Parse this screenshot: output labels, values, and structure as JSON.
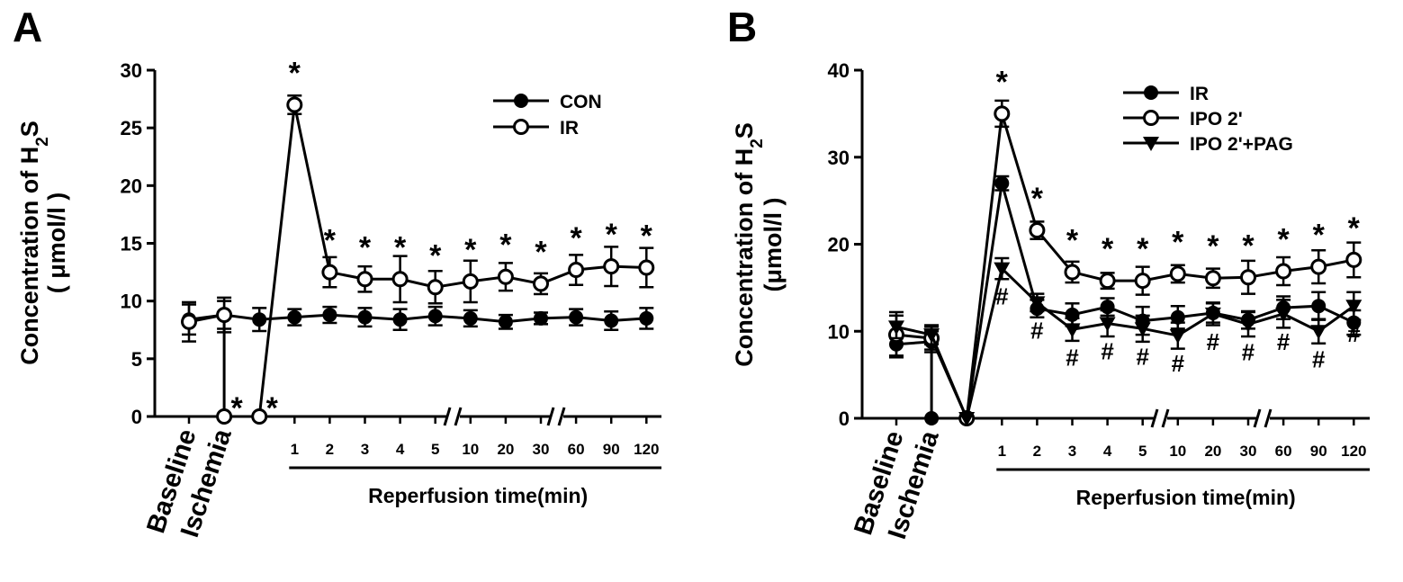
{
  "chart_data": [
    {
      "panel": "A",
      "type": "line",
      "ylabel_line1": "Concentration of H",
      "ylabel_sub": "2",
      "ylabel_tail": "S",
      "ylabel_line2": "( μmol/l )",
      "xlabel": "Reperfusion time(min)",
      "phase_labels": [
        "Baseline",
        "Ischemia"
      ],
      "x_ticks": [
        "1",
        "2",
        "3",
        "4",
        "5",
        "10",
        "20",
        "30",
        "60",
        "90",
        "120"
      ],
      "ylim": [
        0,
        30
      ],
      "y_ticks": [
        0,
        5,
        10,
        15,
        20,
        25,
        30
      ],
      "legend_position": "top-right",
      "series": [
        {
          "name": "CON",
          "marker": "filled-circle",
          "values": [
            8.4,
            8.8,
            8.4,
            8.6,
            8.8,
            8.6,
            8.4,
            8.7,
            8.5,
            8.2,
            8.5,
            8.6,
            8.3,
            8.5
          ],
          "errors": [
            1.3,
            1.2,
            1.0,
            0.7,
            0.7,
            0.8,
            0.9,
            0.8,
            0.7,
            0.6,
            0.5,
            0.7,
            0.8,
            0.9
          ]
        },
        {
          "name": "IR",
          "marker": "open-circle",
          "values": [
            8.2,
            8.8,
            0,
            0,
            27.0,
            12.5,
            11.9,
            11.9,
            11.2,
            11.7,
            12.1,
            11.5,
            12.7,
            13.0,
            12.9
          ],
          "errors": [
            1.7,
            1.5,
            0,
            0,
            0.8,
            1.3,
            1.1,
            2.0,
            1.4,
            1.8,
            1.2,
            0.9,
            1.3,
            1.7,
            1.7
          ],
          "x_index": [
            0,
            1,
            1,
            2,
            3,
            4,
            5,
            6,
            7,
            8,
            9,
            10,
            11,
            12,
            13
          ]
        }
      ],
      "significance": {
        "star": [
          [
            1,
            0
          ],
          [
            2,
            0
          ],
          [
            3,
            27.0
          ],
          [
            4,
            12.5
          ],
          [
            5,
            11.9
          ],
          [
            6,
            11.9
          ],
          [
            7,
            11.2
          ],
          [
            8,
            11.7
          ],
          [
            9,
            12.1
          ],
          [
            10,
            11.5
          ],
          [
            11,
            12.7
          ],
          [
            12,
            13.0
          ],
          [
            13,
            12.9
          ]
        ]
      },
      "star_symbol": "*",
      "hash_symbol": "#"
    },
    {
      "panel": "B",
      "type": "line",
      "ylabel_line1": "Concentration of H",
      "ylabel_sub": "2",
      "ylabel_tail": "S",
      "ylabel_line2": "(μmol/l )",
      "xlabel": "Reperfusion time(min)",
      "phase_labels": [
        "Baseline",
        "Ischemia"
      ],
      "x_ticks": [
        "1",
        "2",
        "3",
        "4",
        "5",
        "10",
        "20",
        "30",
        "60",
        "90",
        "120"
      ],
      "ylim": [
        0,
        40
      ],
      "y_ticks": [
        0,
        10,
        20,
        30,
        40
      ],
      "legend_position": "top-right",
      "series": [
        {
          "name": "IR",
          "marker": "filled-circle",
          "values": [
            8.5,
            8.8,
            0,
            0,
            27.0,
            12.6,
            11.9,
            12.8,
            11.2,
            11.6,
            12.1,
            11.3,
            12.7,
            12.9,
            11.0
          ],
          "errors": [
            1.3,
            1.2,
            0,
            0,
            0.8,
            1.0,
            1.3,
            1.0,
            1.6,
            1.3,
            1.1,
            1.0,
            1.3,
            1.6,
            1.4
          ],
          "x_index": [
            0,
            1,
            1,
            2,
            3,
            4,
            5,
            6,
            7,
            8,
            9,
            10,
            11,
            12,
            13
          ]
        },
        {
          "name": "IPO 2'",
          "marker": "open-circle",
          "values": [
            9.6,
            9.2,
            0,
            35.0,
            21.6,
            16.8,
            15.8,
            15.8,
            16.6,
            16.1,
            16.2,
            16.9,
            17.4,
            18.2
          ],
          "errors": [
            2.6,
            1.3,
            0,
            1.5,
            1.0,
            1.2,
            0.9,
            1.6,
            1.0,
            1.1,
            1.9,
            1.6,
            1.9,
            2.0
          ],
          "x_index": [
            0,
            1,
            2,
            3,
            4,
            5,
            6,
            7,
            8,
            9,
            10,
            11,
            12,
            13
          ]
        },
        {
          "name": "IPO 2'+PAG",
          "marker": "filled-triangle-down",
          "values": [
            10.5,
            9.6,
            0,
            17.2,
            13.3,
            10.2,
            10.9,
            10.3,
            9.5,
            12.0,
            10.8,
            12.0,
            10.0,
            12.9
          ],
          "errors": [
            1.3,
            1.1,
            0,
            1.2,
            1.0,
            1.3,
            1.5,
            1.5,
            1.5,
            1.3,
            1.4,
            1.6,
            1.4,
            1.6
          ],
          "x_index": [
            0,
            1,
            2,
            3,
            4,
            5,
            6,
            7,
            8,
            9,
            10,
            11,
            12,
            13
          ]
        }
      ],
      "significance": {
        "star": [
          [
            3,
            35.0
          ],
          [
            4,
            21.6
          ],
          [
            5,
            16.8
          ],
          [
            6,
            15.8
          ],
          [
            7,
            15.8
          ],
          [
            8,
            16.6
          ],
          [
            9,
            16.1
          ],
          [
            10,
            16.2
          ],
          [
            11,
            16.9
          ],
          [
            12,
            17.4
          ],
          [
            13,
            18.2
          ]
        ],
        "hash": [
          [
            3,
            17.2
          ],
          [
            4,
            13.3
          ],
          [
            5,
            10.2
          ],
          [
            6,
            10.9
          ],
          [
            7,
            10.3
          ],
          [
            8,
            9.5
          ],
          [
            9,
            12.0
          ],
          [
            10,
            10.8
          ],
          [
            11,
            12.0
          ],
          [
            12,
            10.0
          ],
          [
            13,
            12.9
          ]
        ]
      },
      "star_symbol": "*",
      "hash_symbol": "#"
    }
  ]
}
